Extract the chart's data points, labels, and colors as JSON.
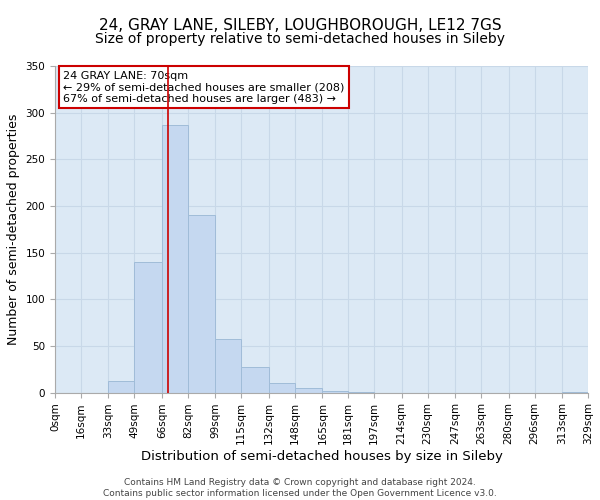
{
  "title": "24, GRAY LANE, SILEBY, LOUGHBOROUGH, LE12 7GS",
  "subtitle": "Size of property relative to semi-detached houses in Sileby",
  "xlabel": "Distribution of semi-detached houses by size in Sileby",
  "ylabel": "Number of semi-detached properties",
  "footer_line1": "Contains HM Land Registry data © Crown copyright and database right 2024.",
  "footer_line2": "Contains public sector information licensed under the Open Government Licence v3.0.",
  "bin_edges": [
    0,
    16,
    33,
    49,
    66,
    82,
    99,
    115,
    132,
    148,
    165,
    181,
    197,
    214,
    230,
    247,
    263,
    280,
    296,
    313,
    329
  ],
  "bin_labels": [
    "0sqm",
    "16sqm",
    "33sqm",
    "49sqm",
    "66sqm",
    "82sqm",
    "99sqm",
    "115sqm",
    "132sqm",
    "148sqm",
    "165sqm",
    "181sqm",
    "197sqm",
    "214sqm",
    "230sqm",
    "247sqm",
    "263sqm",
    "280sqm",
    "296sqm",
    "313sqm",
    "329sqm"
  ],
  "counts": [
    0,
    0,
    13,
    140,
    287,
    190,
    58,
    28,
    10,
    5,
    2,
    1,
    0,
    0,
    0,
    0,
    0,
    0,
    0,
    1
  ],
  "bar_color": "#c5d8f0",
  "bar_edge_color": "#a0bcd8",
  "vline_x": 70,
  "vline_color": "#cc0000",
  "annotation_title": "24 GRAY LANE: 70sqm",
  "annotation_line1": "← 29% of semi-detached houses are smaller (208)",
  "annotation_line2": "67% of semi-detached houses are larger (483) →",
  "annotation_box_color": "#ffffff",
  "annotation_box_edge": "#cc0000",
  "ylim": [
    0,
    350
  ],
  "yticks": [
    0,
    50,
    100,
    150,
    200,
    250,
    300,
    350
  ],
  "fig_bg_color": "#ffffff",
  "plot_bg_color": "#dce9f5",
  "title_fontsize": 11,
  "subtitle_fontsize": 10,
  "xlabel_fontsize": 9.5,
  "ylabel_fontsize": 9,
  "tick_fontsize": 7.5,
  "footer_fontsize": 6.5,
  "footer_color": "#444444"
}
